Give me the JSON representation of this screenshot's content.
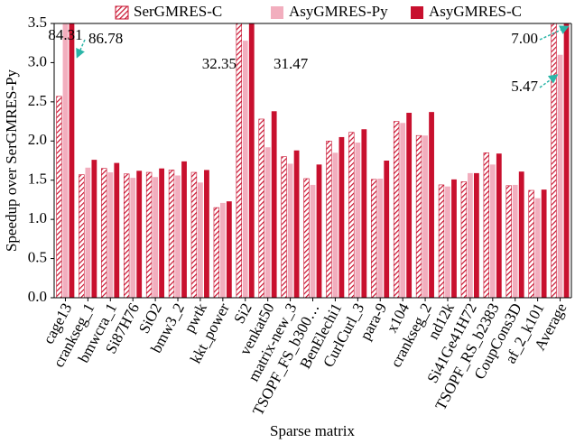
{
  "chart_data": {
    "type": "bar",
    "x_label": "Sparse matrix",
    "y_label": "Speedup over SerGMRES-Py",
    "categories": [
      "cage13",
      "crankseg_1",
      "bmwcra_1",
      "Si87H76",
      "SiO2",
      "bmw3_2",
      "pwtk",
      "kkt_power",
      "Si2",
      "venkat50",
      "matrix-new_3",
      "TSOPF_FS_b300…",
      "BenElechi1",
      "CurlCurl_3",
      "para-9",
      "x104",
      "crankseg_2",
      "nd12k",
      "Si41Ge41H72",
      "TSOPF_RS_b2383",
      "CoupCons3D",
      "af_2_k101",
      "Average"
    ],
    "series": [
      {
        "name": "SerGMRES-C",
        "color": "#c8102e",
        "hatch": true,
        "values": [
          2.57,
          1.57,
          1.65,
          1.58,
          1.6,
          1.63,
          1.6,
          1.15,
          32.35,
          2.28,
          1.8,
          1.52,
          2.0,
          2.11,
          1.51,
          2.25,
          2.07,
          1.44,
          1.48,
          1.85,
          1.43,
          1.37,
          5.47
        ],
        "value_labels": [
          null,
          null,
          null,
          null,
          null,
          null,
          null,
          null,
          "32.35",
          null,
          null,
          null,
          null,
          null,
          null,
          null,
          null,
          null,
          null,
          null,
          null,
          null,
          "5.47"
        ]
      },
      {
        "name": "AsyGMRES-Py",
        "color": "#f2aebe",
        "hatch": false,
        "values": [
          84.31,
          1.66,
          1.6,
          1.53,
          1.54,
          1.56,
          1.47,
          1.21,
          3.28,
          1.92,
          1.71,
          1.44,
          1.85,
          1.98,
          1.52,
          2.23,
          2.07,
          1.42,
          1.59,
          1.7,
          1.44,
          1.27,
          3.1
        ],
        "value_labels": [
          "84.31",
          null,
          null,
          null,
          null,
          null,
          null,
          null,
          null,
          null,
          null,
          null,
          null,
          null,
          null,
          null,
          null,
          null,
          null,
          null,
          null,
          null,
          null
        ]
      },
      {
        "name": "AsyGMRES-C",
        "color": "#c8102e",
        "hatch": false,
        "values": [
          86.78,
          1.76,
          1.72,
          1.62,
          1.65,
          1.74,
          1.63,
          1.23,
          31.47,
          2.38,
          1.88,
          1.7,
          2.05,
          2.15,
          1.75,
          2.36,
          2.37,
          1.51,
          1.59,
          1.84,
          1.61,
          1.38,
          7.0
        ],
        "value_labels": [
          "86.78",
          null,
          null,
          null,
          null,
          null,
          null,
          null,
          "31.47",
          null,
          null,
          null,
          null,
          null,
          null,
          null,
          null,
          null,
          null,
          null,
          null,
          null,
          "7.00"
        ]
      }
    ],
    "ylim": [
      0,
      3.5
    ],
    "yticks": [
      {
        "value": 0,
        "label": "0.0"
      },
      {
        "value": 0.5,
        "label": "0.5"
      },
      {
        "value": 1,
        "label": "1.0"
      },
      {
        "value": 1.5,
        "label": "1.5"
      },
      {
        "value": 2,
        "label": "2.0"
      },
      {
        "value": 2.5,
        "label": "2.5"
      },
      {
        "value": 3,
        "label": "3.0"
      },
      {
        "value": 3.5,
        "label": "3.5"
      }
    ],
    "grid": false,
    "legend": "top"
  }
}
